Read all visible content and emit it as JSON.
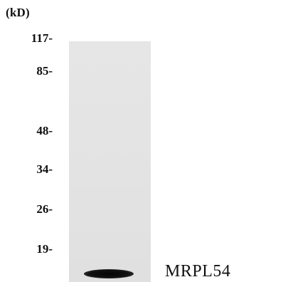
{
  "unit_label": "(kD)",
  "markers": [
    "117-",
    "85-",
    "48-",
    "34-",
    "26-",
    "19-"
  ],
  "band_label": "MRPL54"
}
